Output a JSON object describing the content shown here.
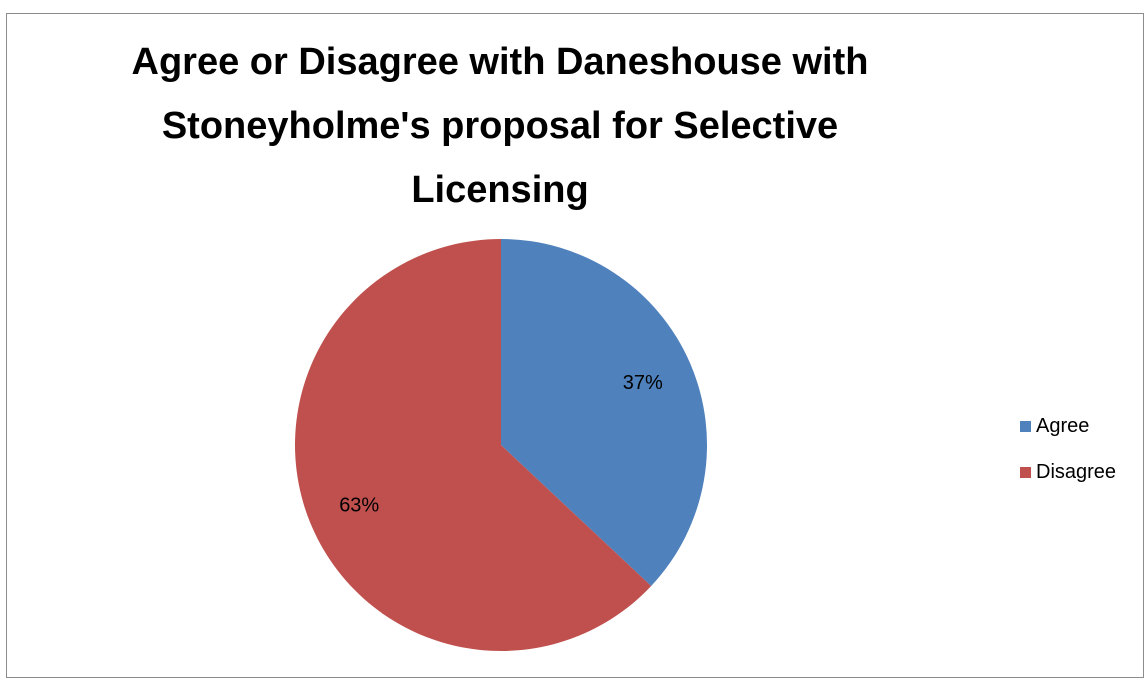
{
  "chart_data": {
    "type": "pie",
    "title": "Agree or Disagree with Daneshouse with Stoneyholme's proposal for Selective Licensing",
    "categories": [
      "Agree",
      "Disagree"
    ],
    "values": [
      37,
      63
    ],
    "data_labels": [
      "37%",
      "63%"
    ],
    "colors": [
      "#4f81bd",
      "#c0504d"
    ],
    "legend_position": "right"
  }
}
